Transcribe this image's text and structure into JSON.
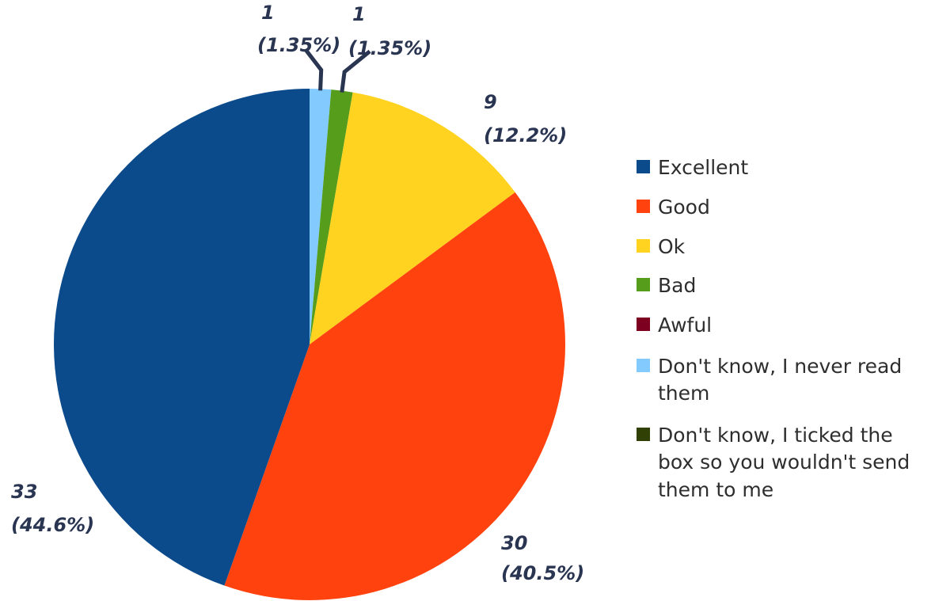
{
  "chart_data": {
    "type": "pie",
    "title": "",
    "slices": [
      {
        "label": "Excellent",
        "value": 33,
        "percent": "44.6%",
        "color": "#0b4a8b"
      },
      {
        "label": "Good",
        "value": 30,
        "percent": "40.5%",
        "color": "#ff420e"
      },
      {
        "label": "Ok",
        "value": 9,
        "percent": "12.2%",
        "color": "#ffd320"
      },
      {
        "label": "Bad",
        "value": 1,
        "percent": "1.35%",
        "color": "#579d1c"
      },
      {
        "label": "Awful",
        "value": 0,
        "percent": "0%",
        "color": "#7e0021"
      },
      {
        "label": "Don't know, I never read them",
        "value": 1,
        "percent": "1.35%",
        "color": "#83caff"
      },
      {
        "label": "Don't know, I ticked the box so you wouldn't send them to me",
        "value": 0,
        "percent": "0%",
        "color": "#314004"
      }
    ],
    "legend": {
      "position": "right",
      "entries": [
        [
          "Excellent"
        ],
        [
          "Good"
        ],
        [
          "Ok"
        ],
        [
          "Bad"
        ],
        [
          "Awful"
        ],
        [
          "Don't know, I never read",
          "them"
        ],
        [
          "Don't know, I ticked the",
          "box so you wouldn't send",
          "them to me"
        ]
      ]
    },
    "data_labels": [
      {
        "value_text": "33",
        "percent_text": "(44.6%)"
      },
      {
        "value_text": "30",
        "percent_text": "(40.5%)"
      },
      {
        "value_text": "9",
        "percent_text": "(12.2%)"
      },
      {
        "value_text": "1",
        "percent_text": "(1.35%)"
      },
      {
        "value_text": "1",
        "percent_text": "(1.35%)"
      }
    ]
  }
}
